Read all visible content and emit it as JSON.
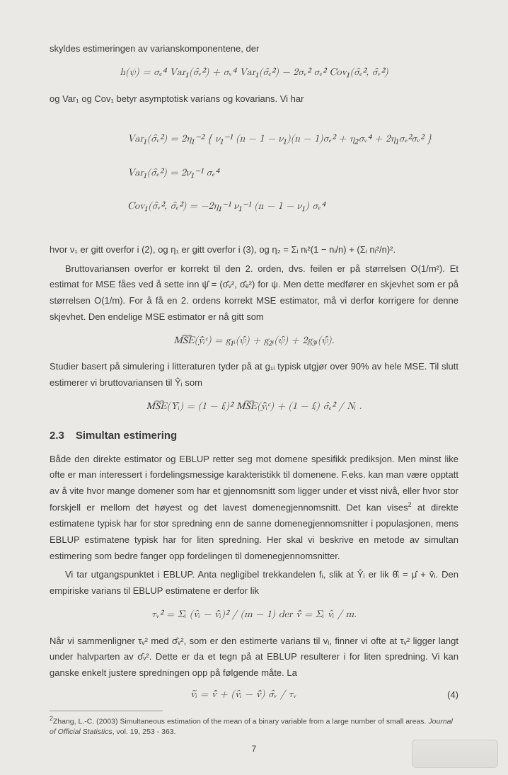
{
  "colors": {
    "background": "#ebe9e6",
    "text": "#3a3a38",
    "footnote_text": "#4a4946",
    "rule": "#9a9894"
  },
  "typography": {
    "body_family": "Helvetica Neue, Helvetica, Arial, sans-serif",
    "math_family": "Latin Modern Math, Cambria Math, STIX Two Math, Georgia, serif",
    "body_size_pt": 10,
    "heading_size_pt": 12,
    "footnote_size_pt": 8,
    "line_height": 1.75
  },
  "p1": "skyldes estimeringen av varianskomponentene, der",
  "eq1": "h(ψ) = σₑ⁴ Var₁(σ̂ᵥ²) + σᵥ⁴ Var₁(σ̂ₑ²) − 2σᵥ² σₑ² Cov₁(σ̂ₑ², σ̂ᵥ²)",
  "p2": "og Var₁ og Cov₁ betyr asymptotisk varians og kovarians. Vi har",
  "eq2a": "Var₁(σ̂ᵥ²) = 2η₁⁻² { ν₁⁻¹ (n − 1 − ν₁)(n − 1)σₑ² + η₂σᵥ⁴ + 2η₁σₑ²σᵥ² }",
  "eq2b": "Var₁(σ̂ₑ²) = 2ν₁⁻¹ σₑ⁴",
  "eq2c": "Cov₁(σ̂ᵥ², σ̂ₑ²) = −2η₁⁻¹ ν₁⁻¹ (n − 1 − ν₁) σₑ⁴",
  "p3": "hvor ν₁ er gitt overfor i (2), og η₁ er gitt overfor i (3), og η₂ = Σᵢ nᵢ²(1 − nᵢ/n) + (Σᵢ nᵢ²/n)².",
  "p4": "Bruttovariansen overfor er korrekt til den 2. orden, dvs. feilen er på størrelsen O(1/m²). Et estimat for MSE fåes ved å sette inn ψ̂ = (σ̂ᵥ², σ̂ₑ²) for ψ. Men dette medfører en skjevhet som er på størrelsen O(1/m). For å få en 2. ordens korrekt MSE estimator, må vi derfor korrigere for denne skjevhet. Den endelige MSE estimator er nå gitt som",
  "eq3": "M͡S͡E(ȳ̂ᵢᶜ) = g₁ᵢ(ψ̂) + g₂ᵢ(ψ̂) + 2g₃ᵢ(ψ̂).",
  "p5": "Studier basert på simulering i litteraturen tyder på at g₁ᵢ typisk utgjør over 90% av hele MSE. Til slutt estimerer vi bruttovariansen til Ŷᵢ som",
  "eq4": "M͡S͡E(Ŷᵢ) = (1 − fᵢ)² M͡S͡E(ȳ̂ᵢᶜ) + (1 − fᵢ) σ̂ₑ² / Nᵢ .",
  "sec_num": "2.3",
  "sec_title": "Simultan estimering",
  "p6": "Både den direkte estimator og EBLUP retter seg mot domene spesifikk prediksjon. Men minst like ofte er man interessert i fordelingsmessige karakteristikk til domenene. F.eks. kan man være opptatt av å vite hvor mange domener som har et gjennomsnitt som ligger under et visst nivå, eller hvor stor forskjell er mellom det høyest og det lavest domenegjennomsnitt. Det kan vises",
  "p6_fnmark": "2",
  "p6b": " at direkte estimatene typisk har for stor spredning enn de sanne domenegjennomsnitter i populasjonen, mens EBLUP estimatene typisk har for liten spredning. Her skal vi beskrive en metode av simultan estimering som bedre fanger opp fordelingen til domenegjennomsnitter.",
  "p7": "Vi tar utgangspunktet i EBLUP. Anta negligibel trekkandelen fᵢ, slik at Ŷᵢ er lik θ̂ᵢ = μ̂ + v̂ᵢ. Den empiriske varians til EBLUP estimatene er derfor lik",
  "eq5": "τᵥ² = Σᵢ (v̂ᵢ − v̄̂ᵢ)² / (m − 1)      der    v̄̂ = Σᵢ v̂ᵢ / m.",
  "p8": "Når vi sammenligner τᵥ² med σ̂ᵥ², som er den estimerte varians til vᵢ, finner vi ofte at τᵥ² ligger langt under halvparten av σ̂ᵥ². Dette er da et tegn på at EBLUP resulterer i for liten spredning. Vi kan ganske enkelt justere spredningen opp på følgende måte. La",
  "eq6": "ṽᵢ = v̄̂ + (v̂ᵢ − v̄̂) σ̂ᵥ / τᵥ",
  "eq6_num": "(4)",
  "footnote_mark": "2",
  "footnote_text_a": "Zhang, L.-C. (2003) Simultaneous estimation of the mean of a binary variable from a large number of small areas. ",
  "footnote_journal": "Journal of Official Statistics",
  "footnote_text_b": ", vol. 19, 253 - 363.",
  "page_number": "7"
}
